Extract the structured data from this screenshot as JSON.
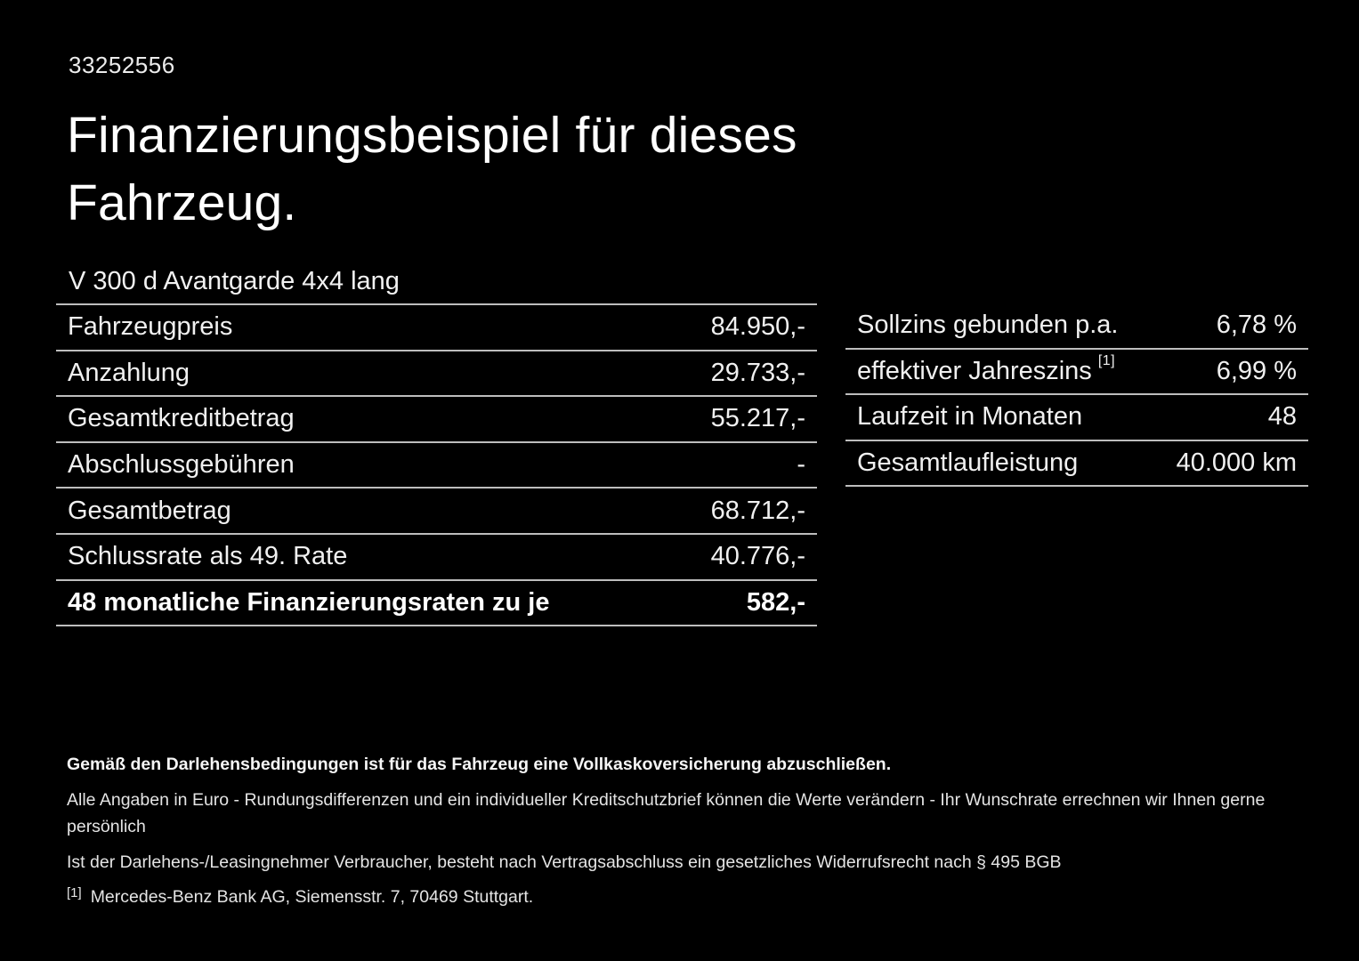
{
  "page": {
    "id_number": "33252556",
    "title_line1": "Finanzierungsbeispiel für dieses",
    "title_line2": "Fahrzeug.",
    "vehicle_name": "V 300 d Avantgarde 4x4 lang"
  },
  "left_table": {
    "rows": [
      {
        "label": "Fahrzeugpreis",
        "value": "84.950,-"
      },
      {
        "label": "Anzahlung",
        "value": "29.733,-"
      },
      {
        "label": "Gesamtkreditbetrag",
        "value": "55.217,-"
      },
      {
        "label": "Abschlussgebühren",
        "value": "-"
      },
      {
        "label": "Gesamtbetrag",
        "value": "68.712,-"
      },
      {
        "label": "Schlussrate als 49. Rate",
        "value": "40.776,-"
      },
      {
        "label": "48 monatliche Finanzierungsraten zu je",
        "value": "582,-",
        "bold": true
      }
    ]
  },
  "right_table": {
    "rows": [
      {
        "label": "Sollzins gebunden p.a.",
        "value": "6,78 %"
      },
      {
        "label": "effektiver Jahreszins",
        "footnote": "[1]",
        "value": "6,99 %"
      },
      {
        "label": "Laufzeit in Monaten",
        "value": "48"
      },
      {
        "label": "Gesamtlaufleistung",
        "value": "40.000 km"
      }
    ]
  },
  "footer": {
    "bold_note": "Gemäß den Darlehensbedingungen ist für das Fahrzeug eine Vollkaskoversicherung abzuschließen.",
    "note_line_1": "Alle Angaben in Euro - Rundungsdifferenzen und ein individueller Kreditschutzbrief können die Werte verändern - Ihr Wunschrate errechnen wir Ihnen gerne persönlich",
    "note_line_2": "Ist der Darlehens-/Leasingnehmer Verbraucher, besteht nach Vertragsabschluss ein gesetzliches Widerrufsrecht nach § 495 BGB",
    "footnote_marker": "[1]",
    "footnote_text": "Mercedes-Benz Bank AG, Siemensstr. 7, 70469 Stuttgart."
  },
  "colors": {
    "background": "#000000",
    "text": "#f0f0f0",
    "title": "#ffffff",
    "divider": "#bdbdbd"
  }
}
